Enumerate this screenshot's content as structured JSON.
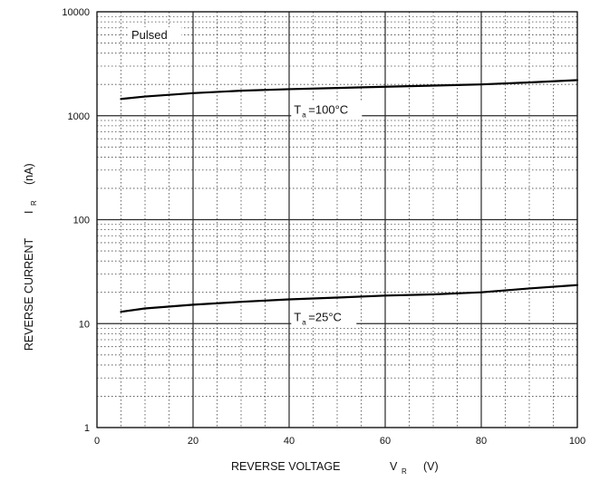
{
  "chart_data": {
    "type": "line",
    "x_scale": "linear",
    "y_scale": "log",
    "xlim": [
      0,
      100
    ],
    "ylim": [
      1,
      10000
    ],
    "xticks": [
      "0",
      "20",
      "40",
      "60",
      "80",
      "100"
    ],
    "yticks": [
      "1",
      "10",
      "100",
      "1000",
      "10000"
    ],
    "xlabel": {
      "main": "REVERSE VOLTAGE",
      "symbol": "V",
      "subscript": "R",
      "unit": "(V)"
    },
    "ylabel": {
      "main": "REVERSE CURRENT",
      "symbol": "I",
      "subscript": "R",
      "unit": "(nA)"
    },
    "annotations": {
      "pulsed": "Pulsed"
    },
    "grid": true,
    "minor_grid": "dotted",
    "series": [
      {
        "name": "T a =100°C",
        "label_prefix": "T",
        "label_subscript": "a",
        "label_suffix": "=100°C",
        "x": [
          5,
          10,
          20,
          30,
          40,
          50,
          60,
          70,
          80,
          90,
          100
        ],
        "y": [
          1450,
          1530,
          1650,
          1740,
          1800,
          1850,
          1900,
          1950,
          2000,
          2090,
          2200
        ],
        "color": "#000000"
      },
      {
        "name": "T a =25°C",
        "label_prefix": "T",
        "label_subscript": "a",
        "label_suffix": "=25°C",
        "x": [
          5,
          10,
          20,
          30,
          40,
          50,
          60,
          70,
          80,
          90,
          100
        ],
        "y": [
          13,
          14,
          15.2,
          16.2,
          17.1,
          17.8,
          18.6,
          19.1,
          20,
          21.8,
          23.5
        ],
        "color": "#000000"
      }
    ]
  }
}
